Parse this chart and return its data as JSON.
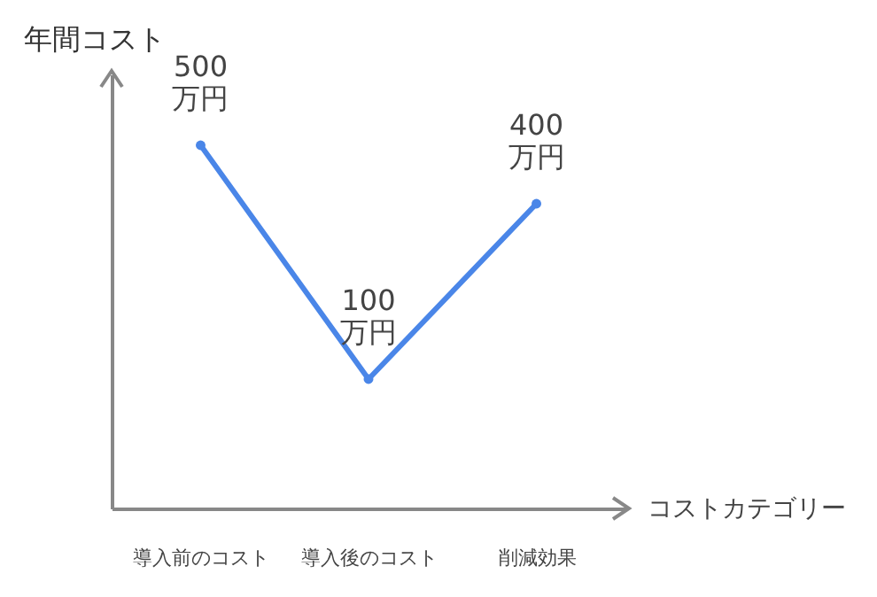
{
  "chart_data": {
    "type": "line",
    "xlabel": "コストカテゴリー",
    "ylabel": "年間コスト",
    "categories": [
      "導入前のコスト",
      "導入後のコスト",
      "削減効果"
    ],
    "values": [
      500,
      100,
      400
    ],
    "color": "#4a86e8",
    "value_labels": [
      "500\n万円",
      "100\n万円",
      "400\n万円"
    ],
    "marker": "circle",
    "line_style": "solid",
    "grid": false,
    "legend": false,
    "tick_labels": "x"
  }
}
